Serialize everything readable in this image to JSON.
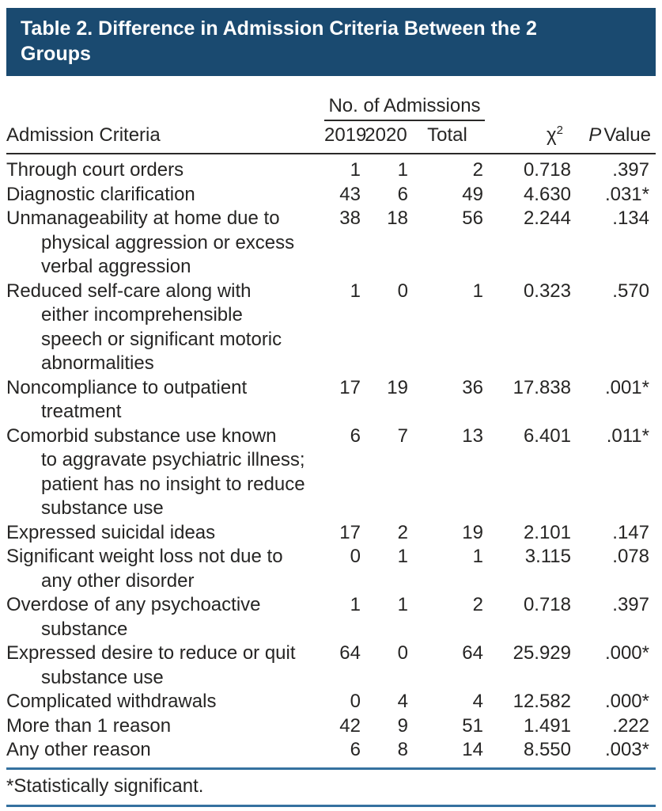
{
  "banner": {
    "title": "Table 2. Difference in Admission Criteria Between the 2 Groups"
  },
  "colors": {
    "banner": "#1a4a70",
    "rule-blue": "#35719f",
    "rule-black": "#2b2a29",
    "text": "#262524"
  },
  "table": {
    "criteria_header": "Admission Criteria",
    "group_header": "No. of Admissions",
    "columns": {
      "y2019": "2019",
      "y2020": "2020",
      "total": "Total",
      "chi_base": "χ",
      "chi_sup": "2",
      "p_italic": "P",
      "p_rest": "Value"
    },
    "rows": [
      {
        "lines": [
          "Through court orders"
        ],
        "y2019": "1",
        "y2020": "1",
        "total": "2",
        "chi2": "0.718",
        "p": ".397"
      },
      {
        "lines": [
          "Diagnostic clarification"
        ],
        "y2019": "43",
        "y2020": "6",
        "total": "49",
        "chi2": "4.630",
        "p": ".031*"
      },
      {
        "lines": [
          "Unmanageability at home due to",
          "physical aggression or excess",
          "verbal aggression"
        ],
        "y2019": "38",
        "y2020": "18",
        "total": "56",
        "chi2": "2.244",
        "p": ".134"
      },
      {
        "lines": [
          "Reduced self-care along with",
          "either incomprehensible",
          "speech or significant motoric",
          "abnormalities"
        ],
        "y2019": "1",
        "y2020": "0",
        "total": "1",
        "chi2": "0.323",
        "p": ".570"
      },
      {
        "lines": [
          "Noncompliance to outpatient",
          "treatment"
        ],
        "y2019": "17",
        "y2020": "19",
        "total": "36",
        "chi2": "17.838",
        "p": ".001*"
      },
      {
        "lines": [
          "Comorbid substance use known",
          "to aggravate psychiatric illness;",
          "patient has no insight to reduce",
          "substance use"
        ],
        "y2019": "6",
        "y2020": "7",
        "total": "13",
        "chi2": "6.401",
        "p": ".011*"
      },
      {
        "lines": [
          "Expressed suicidal ideas"
        ],
        "y2019": "17",
        "y2020": "2",
        "total": "19",
        "chi2": "2.101",
        "p": ".147"
      },
      {
        "lines": [
          "Significant weight loss not due to",
          "any other disorder"
        ],
        "y2019": "0",
        "y2020": "1",
        "total": "1",
        "chi2": "3.115",
        "p": ".078"
      },
      {
        "lines": [
          "Overdose of any psychoactive",
          "substance"
        ],
        "y2019": "1",
        "y2020": "1",
        "total": "2",
        "chi2": "0.718",
        "p": ".397"
      },
      {
        "lines": [
          "Expressed desire to reduce or quit",
          "substance use"
        ],
        "y2019": "64",
        "y2020": "0",
        "total": "64",
        "chi2": "25.929",
        "p": ".000*"
      },
      {
        "lines": [
          "Complicated withdrawals"
        ],
        "y2019": "0",
        "y2020": "4",
        "total": "4",
        "chi2": "12.582",
        "p": ".000*"
      },
      {
        "lines": [
          "More than 1 reason"
        ],
        "y2019": "42",
        "y2020": "9",
        "total": "51",
        "chi2": "1.491",
        "p": ".222"
      },
      {
        "lines": [
          "Any other reason"
        ],
        "y2019": "6",
        "y2020": "8",
        "total": "14",
        "chi2": "8.550",
        "p": ".003*"
      }
    ],
    "footnote": "*Statistically significant."
  }
}
